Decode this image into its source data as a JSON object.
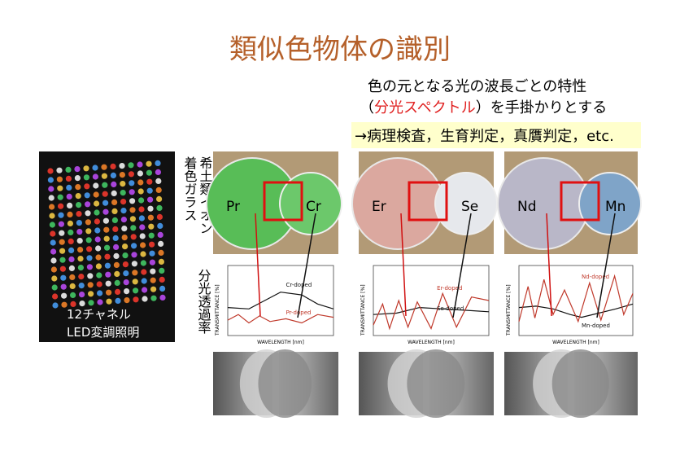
{
  "title": "類似色物体の識別",
  "subtitle": {
    "line1": "色の元となる光の波長ごとの特性",
    "open": "（",
    "emphasis": "分光スペクトル",
    "close": "）を手掛かりとする"
  },
  "highlight": "→病理検査，生育判定，真贋判定，etc.",
  "led_caption": [
    "12チャネル",
    "LED変調照明"
  ],
  "side_labels": {
    "glass": [
      "希土類イオン",
      "着色ガラス"
    ],
    "spectrum": "分光透過率"
  },
  "axis": {
    "x": "WAVELENGTH [nm]",
    "y": "TRANSMITTANCE [%]"
  },
  "panels": [
    {
      "left": "Pr",
      "right": "Cr",
      "left_curve": "Pr-doped",
      "right_curve": "Cr-doped"
    },
    {
      "left": "Er",
      "right": "Se",
      "left_curve": "Er-doped",
      "right_curve": "Se-doped"
    },
    {
      "left": "Nd",
      "right": "Mn",
      "left_curve": "Nd-doped",
      "right_curve": "Mn-doped"
    }
  ]
}
